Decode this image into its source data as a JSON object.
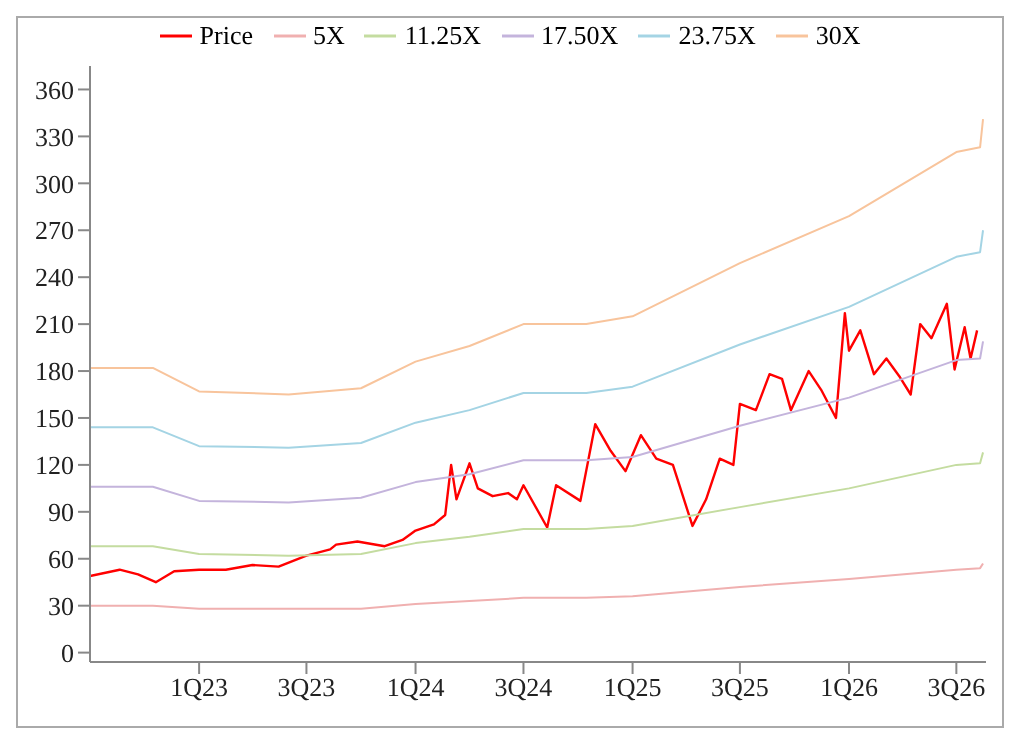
{
  "chart_data": {
    "type": "line",
    "legend": "top",
    "grid": false,
    "marker": "none",
    "line_style": "solid",
    "ylim": [
      -6,
      375
    ],
    "yticks": [
      0,
      30,
      60,
      90,
      120,
      150,
      180,
      210,
      240,
      270,
      300,
      330,
      360
    ],
    "xlim": [
      "2022-07-01",
      "2026-08-20"
    ],
    "xticks": [
      {
        "value": "2023-01-01",
        "label": "1Q23"
      },
      {
        "value": "2023-07-01",
        "label": "3Q23"
      },
      {
        "value": "2024-01-01",
        "label": "1Q24"
      },
      {
        "value": "2024-07-01",
        "label": "3Q24"
      },
      {
        "value": "2025-01-01",
        "label": "1Q25"
      },
      {
        "value": "2025-07-01",
        "label": "3Q25"
      },
      {
        "value": "2026-01-01",
        "label": "1Q26"
      },
      {
        "value": "2026-07-01",
        "label": "3Q26"
      }
    ],
    "series": [
      {
        "name": "Price",
        "color": "#ff0000",
        "x": [
          "2022-07-01",
          "2022-08-20",
          "2022-09-20",
          "2022-10-20",
          "2022-11-20",
          "2023-01-01",
          "2023-02-15",
          "2023-04-01",
          "2023-05-15",
          "2023-07-01",
          "2023-08-10",
          "2023-08-20",
          "2023-09-25",
          "2023-11-10",
          "2023-12-10",
          "2024-01-01",
          "2024-02-01",
          "2024-02-20",
          "2024-03-01",
          "2024-03-10",
          "2024-04-01",
          "2024-04-15",
          "2024-05-10",
          "2024-06-05",
          "2024-06-20",
          "2024-07-01",
          "2024-08-10",
          "2024-08-25",
          "2024-10-05",
          "2024-10-30",
          "2024-11-25",
          "2024-12-20",
          "2025-01-15",
          "2025-02-10",
          "2025-03-10",
          "2025-04-12",
          "2025-05-05",
          "2025-05-28",
          "2025-06-20",
          "2025-07-01",
          "2025-07-28",
          "2025-08-20",
          "2025-09-10",
          "2025-09-25",
          "2025-10-25",
          "2025-11-15",
          "2025-12-10",
          "2025-12-25",
          "2026-01-01",
          "2026-01-20",
          "2026-02-12",
          "2026-03-05",
          "2026-03-28",
          "2026-04-15",
          "2026-05-01",
          "2026-05-20",
          "2026-06-15",
          "2026-06-28",
          "2026-07-15",
          "2026-07-25",
          "2026-08-05"
        ],
        "values": [
          49,
          53,
          50,
          45,
          52,
          53,
          53,
          56,
          55,
          62,
          66,
          69,
          71,
          68,
          72,
          78,
          82,
          88,
          120,
          98,
          121,
          105,
          100,
          102,
          98,
          107,
          80,
          107,
          97,
          146,
          129,
          116,
          139,
          124,
          120,
          81,
          98,
          124,
          120,
          159,
          155,
          178,
          175,
          155,
          180,
          168,
          150,
          217,
          193,
          206,
          178,
          188,
          176,
          165,
          210,
          201,
          223,
          181,
          208,
          188,
          206
        ]
      },
      {
        "name": "5X",
        "color": "#f0b0b0",
        "x": [
          "2022-07-01",
          "2022-10-15",
          "2023-01-01",
          "2023-06-01",
          "2023-10-01",
          "2024-01-01",
          "2024-04-01",
          "2024-07-01",
          "2024-10-15",
          "2025-01-01",
          "2025-07-01",
          "2026-01-01",
          "2026-07-01",
          "2026-08-10",
          "2026-08-15"
        ],
        "values": [
          30,
          30,
          28,
          28,
          28,
          31,
          33,
          35,
          35,
          36,
          42,
          47,
          53,
          54,
          57
        ]
      },
      {
        "name": "11.25X",
        "color": "#c4dca0",
        "x": [
          "2022-07-01",
          "2022-10-15",
          "2023-01-01",
          "2023-06-01",
          "2023-10-01",
          "2024-01-01",
          "2024-04-01",
          "2024-07-01",
          "2024-10-15",
          "2025-01-01",
          "2025-07-01",
          "2026-01-01",
          "2026-07-01",
          "2026-08-10",
          "2026-08-15"
        ],
        "values": [
          68,
          68,
          63,
          62,
          63,
          70,
          74,
          79,
          79,
          81,
          93,
          105,
          120,
          121,
          128
        ]
      },
      {
        "name": "17.50X",
        "color": "#c4b4dc",
        "x": [
          "2022-07-01",
          "2022-10-15",
          "2023-01-01",
          "2023-06-01",
          "2023-10-01",
          "2024-01-01",
          "2024-04-01",
          "2024-07-01",
          "2024-10-15",
          "2025-01-01",
          "2025-07-01",
          "2026-01-01",
          "2026-07-01",
          "2026-08-10",
          "2026-08-15"
        ],
        "values": [
          106,
          106,
          97,
          96,
          99,
          109,
          114,
          123,
          123,
          125,
          145,
          163,
          187,
          188,
          199
        ]
      },
      {
        "name": "23.75X",
        "color": "#a4d4e4",
        "x": [
          "2022-07-01",
          "2022-10-15",
          "2023-01-01",
          "2023-06-01",
          "2023-10-01",
          "2024-01-01",
          "2024-04-01",
          "2024-07-01",
          "2024-10-15",
          "2025-01-01",
          "2025-07-01",
          "2026-01-01",
          "2026-07-01",
          "2026-08-10",
          "2026-08-15"
        ],
        "values": [
          144,
          144,
          132,
          131,
          134,
          147,
          155,
          166,
          166,
          170,
          197,
          221,
          253,
          256,
          270
        ]
      },
      {
        "name": "30X",
        "color": "#f8c49c",
        "x": [
          "2022-07-01",
          "2022-10-15",
          "2023-01-01",
          "2023-06-01",
          "2023-10-01",
          "2024-01-01",
          "2024-04-01",
          "2024-07-01",
          "2024-10-15",
          "2025-01-01",
          "2025-07-01",
          "2026-01-01",
          "2026-07-01",
          "2026-08-10",
          "2026-08-15"
        ],
        "values": [
          182,
          182,
          167,
          165,
          169,
          186,
          196,
          210,
          210,
          215,
          249,
          279,
          320,
          323,
          341
        ]
      }
    ]
  }
}
